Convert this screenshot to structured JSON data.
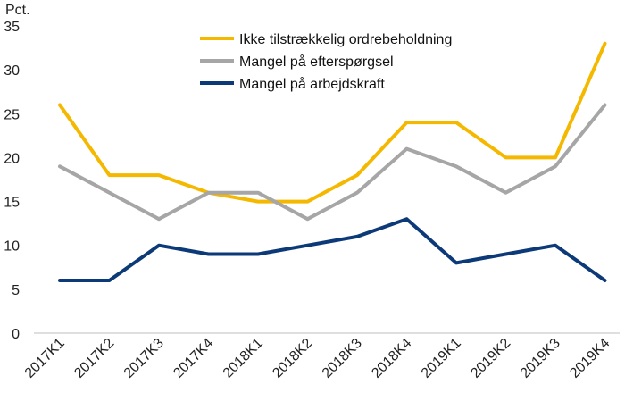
{
  "chart_data": {
    "type": "line",
    "title": "",
    "xlabel": "",
    "ylabel": "Pct.",
    "ylim": [
      0,
      35
    ],
    "yticks": [
      "0",
      "5",
      "10",
      "15",
      "20",
      "25",
      "30",
      "35"
    ],
    "grid": false,
    "legend_position": "top-right",
    "categories": [
      "2017K1",
      "2017K2",
      "2017K3",
      "2017K4",
      "2018K1",
      "2018K2",
      "2018K3",
      "2018K4",
      "2019K1",
      "2019K2",
      "2019K3",
      "2019K4"
    ],
    "series": [
      {
        "name": "Ikke tilstrækkelig ordrebeholdning",
        "color": "#f5b800",
        "values": [
          26,
          18,
          18,
          16,
          15,
          15,
          18,
          24,
          24,
          20,
          20,
          33
        ]
      },
      {
        "name": "Mangel på efterspørgsel",
        "color": "#a6a6a6",
        "values": [
          19,
          16,
          13,
          16,
          16,
          13,
          16,
          21,
          19,
          16,
          19,
          26
        ]
      },
      {
        "name": "Mangel på arbejdskraft",
        "color": "#0c3a78",
        "values": [
          6,
          6,
          10,
          9,
          9,
          10,
          11,
          13,
          8,
          9,
          10,
          6
        ]
      }
    ]
  }
}
